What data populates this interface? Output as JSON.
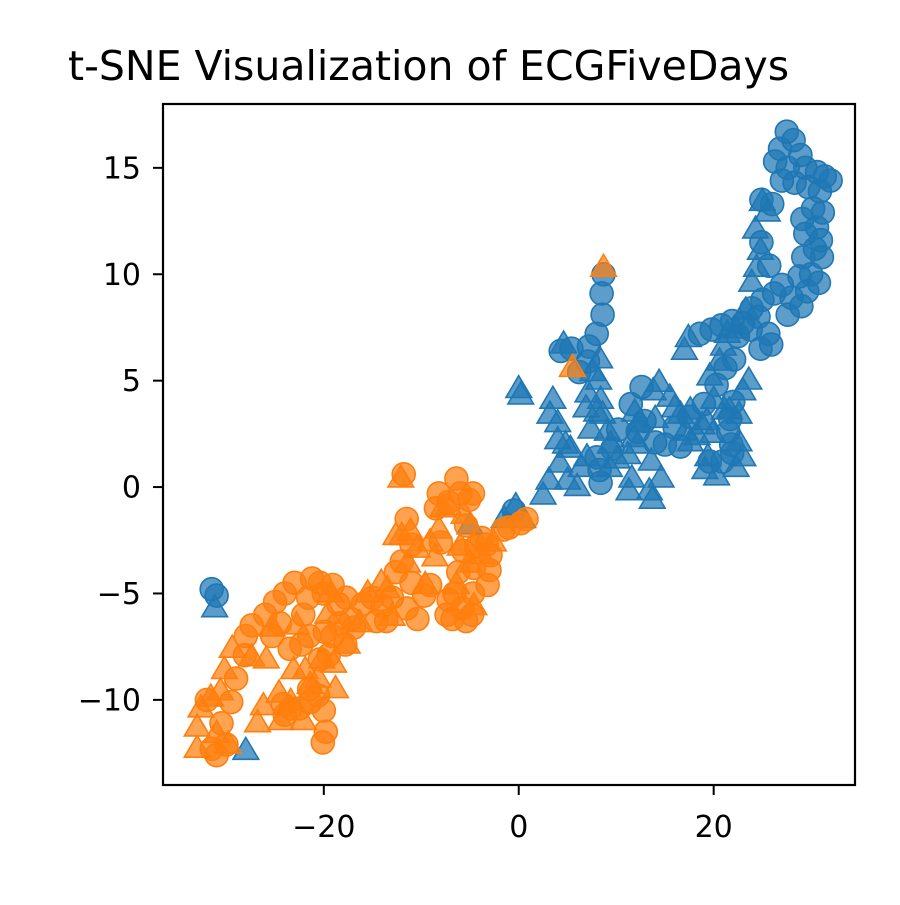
{
  "chart_data": {
    "type": "scatter",
    "title": "t-SNE Visualization of ECGFiveDays",
    "xlabel": "",
    "ylabel": "",
    "xlim": [
      -36.5,
      34.5
    ],
    "ylim": [
      -14.0,
      18.0
    ],
    "xticks": [
      -20,
      0,
      20
    ],
    "yticks": [
      -10,
      -5,
      0,
      5,
      10,
      15
    ],
    "xtick_labels": [
      "−20",
      "0",
      "20"
    ],
    "ytick_labels": [
      "−10",
      "−5",
      "0",
      "5",
      "10",
      "15"
    ],
    "grid": false,
    "legend": "none",
    "series": [
      {
        "color": "#1f77b4",
        "marker": "circle",
        "points": [
          [
            -31.5,
            -4.8
          ],
          [
            -31.0,
            -5.1
          ],
          [
            27.5,
            16.7
          ],
          [
            28.2,
            16.3
          ],
          [
            26.8,
            15.9
          ],
          [
            28.9,
            15.6
          ],
          [
            26.3,
            15.3
          ],
          [
            27.6,
            15.0
          ],
          [
            29.4,
            15.0
          ],
          [
            30.6,
            14.8
          ],
          [
            31.4,
            14.6
          ],
          [
            32.0,
            14.4
          ],
          [
            28.3,
            14.3
          ],
          [
            29.7,
            14.1
          ],
          [
            30.9,
            13.9
          ],
          [
            27.0,
            14.4
          ],
          [
            26.0,
            13.3
          ],
          [
            24.9,
            13.5
          ],
          [
            30.2,
            13.1
          ],
          [
            31.2,
            12.9
          ],
          [
            29.1,
            12.6
          ],
          [
            30.6,
            12.2
          ],
          [
            31.0,
            11.6
          ],
          [
            29.4,
            11.9
          ],
          [
            24.9,
            11.5
          ],
          [
            30.4,
            11.2
          ],
          [
            29.2,
            10.8
          ],
          [
            31.1,
            10.8
          ],
          [
            25.7,
            10.4
          ],
          [
            30.0,
            10.0
          ],
          [
            28.8,
            9.9
          ],
          [
            30.8,
            9.6
          ],
          [
            29.6,
            9.2
          ],
          [
            27.0,
            9.5
          ],
          [
            26.2,
            9.1
          ],
          [
            25.0,
            8.8
          ],
          [
            23.9,
            8.4
          ],
          [
            28.0,
            8.9
          ],
          [
            29.0,
            8.5
          ],
          [
            27.6,
            8.1
          ],
          [
            24.6,
            8.0
          ],
          [
            23.0,
            7.7
          ],
          [
            21.9,
            7.8
          ],
          [
            20.8,
            7.6
          ],
          [
            19.8,
            7.4
          ],
          [
            18.6,
            7.2
          ],
          [
            22.5,
            7.1
          ],
          [
            23.8,
            7.4
          ],
          [
            25.6,
            7.2
          ],
          [
            25.9,
            6.7
          ],
          [
            24.8,
            6.5
          ],
          [
            8.7,
            10.0
          ],
          [
            8.5,
            9.1
          ],
          [
            8.6,
            8.1
          ],
          [
            8.0,
            7.2
          ],
          [
            7.2,
            6.6
          ],
          [
            5.4,
            6.5
          ],
          [
            4.3,
            6.4
          ],
          [
            7.1,
            5.9
          ],
          [
            6.2,
            5.4
          ],
          [
            12.6,
            4.7
          ],
          [
            12.9,
            3.1
          ],
          [
            11.5,
            3.9
          ],
          [
            12.2,
            2.6
          ],
          [
            14.0,
            2.1
          ],
          [
            16.0,
            2.8
          ],
          [
            17.5,
            3.3
          ],
          [
            19.0,
            3.9
          ],
          [
            20.3,
            4.8
          ],
          [
            21.2,
            5.6
          ],
          [
            22.1,
            6.0
          ],
          [
            22.0,
            4.0
          ],
          [
            21.7,
            3.2
          ],
          [
            21.5,
            2.6
          ],
          [
            21.8,
            2.0
          ],
          [
            21.9,
            1.6
          ],
          [
            20.9,
            1.2
          ],
          [
            19.6,
            1.2
          ],
          [
            16.6,
            1.9
          ],
          [
            15.0,
            2.0
          ],
          [
            8.0,
            1.4
          ],
          [
            8.3,
            0.8
          ],
          [
            8.4,
            0.2
          ],
          [
            10.2,
            2.7
          ],
          [
            9.6,
            1.8
          ],
          [
            -0.5,
            -1.1
          ]
        ]
      },
      {
        "color": "#1f77b4",
        "marker": "triangle",
        "points": [
          [
            -31.2,
            -5.7
          ],
          [
            -28.0,
            -12.4
          ],
          [
            -5.0,
            -1.8
          ],
          [
            -1.5,
            -1.5
          ],
          [
            -0.3,
            -0.9
          ],
          [
            0.4,
            -1.5
          ],
          [
            0.0,
            4.6
          ],
          [
            0.2,
            4.3
          ],
          [
            3.2,
            3.4
          ],
          [
            3.5,
            4.1
          ],
          [
            4.8,
            2.0
          ],
          [
            4.0,
            3.0
          ],
          [
            4.6,
            6.7
          ],
          [
            4.0,
            2.2
          ],
          [
            3.1,
            0.3
          ],
          [
            2.5,
            -0.4
          ],
          [
            4.2,
            1.1
          ],
          [
            5.3,
            1.8
          ],
          [
            5.0,
            0.3
          ],
          [
            6.4,
            0.9
          ],
          [
            6.0,
            0.0
          ],
          [
            7.0,
            1.4
          ],
          [
            7.4,
            2.7
          ],
          [
            6.9,
            3.7
          ],
          [
            7.1,
            4.4
          ],
          [
            7.6,
            5.4
          ],
          [
            8.3,
            6.0
          ],
          [
            8.2,
            5.0
          ],
          [
            8.4,
            4.1
          ],
          [
            8.0,
            3.5
          ],
          [
            8.6,
            3.4
          ],
          [
            9.1,
            2.6
          ],
          [
            9.4,
            2.0
          ],
          [
            10.1,
            1.3
          ],
          [
            9.3,
            0.9
          ],
          [
            11.2,
            1.5
          ],
          [
            11.6,
            0.4
          ],
          [
            11.3,
            -0.2
          ],
          [
            11.9,
            3.5
          ],
          [
            11.8,
            2.3
          ],
          [
            12.2,
            2.0
          ],
          [
            12.4,
            3.0
          ],
          [
            13.6,
            1.2
          ],
          [
            14.6,
            0.4
          ],
          [
            13.7,
            -0.6
          ],
          [
            13.4,
            -0.2
          ],
          [
            14.0,
            3.2
          ],
          [
            13.8,
            4.5
          ],
          [
            14.4,
            4.9
          ],
          [
            15.5,
            4.2
          ],
          [
            16.0,
            3.7
          ],
          [
            16.6,
            3.4
          ],
          [
            17.6,
            3.6
          ],
          [
            17.1,
            2.6
          ],
          [
            17.6,
            2.1
          ],
          [
            18.3,
            2.4
          ],
          [
            18.8,
            2.9
          ],
          [
            19.3,
            3.1
          ],
          [
            19.9,
            2.5
          ],
          [
            19.4,
            1.4
          ],
          [
            19.1,
            0.8
          ],
          [
            19.6,
            5.2
          ],
          [
            20.6,
            5.9
          ],
          [
            20.0,
            4.1
          ],
          [
            21.1,
            3.6
          ],
          [
            21.6,
            3.6
          ],
          [
            23.0,
            4.5
          ],
          [
            23.6,
            5.0
          ],
          [
            22.6,
            3.4
          ],
          [
            22.6,
            2.1
          ],
          [
            23.0,
            1.4
          ],
          [
            22.3,
            0.9
          ],
          [
            20.3,
            0.5
          ],
          [
            17.0,
            6.4
          ],
          [
            17.4,
            7.0
          ],
          [
            21.0,
            6.6
          ],
          [
            21.4,
            7.2
          ],
          [
            22.3,
            7.4
          ],
          [
            23.3,
            8.3
          ],
          [
            23.9,
            9.6
          ],
          [
            24.4,
            10.3
          ],
          [
            24.8,
            11.1
          ],
          [
            24.3,
            12.1
          ],
          [
            25.5,
            12.9
          ],
          [
            25.0,
            13.4
          ]
        ]
      },
      {
        "color": "#ff7f0e",
        "marker": "circle",
        "points": [
          [
            -32.0,
            -10.0
          ],
          [
            -31.5,
            -12.3
          ],
          [
            -30.0,
            -12.1
          ],
          [
            -30.5,
            -11.1
          ],
          [
            -29.5,
            -10.1
          ],
          [
            -29.0,
            -9.0
          ],
          [
            -28.1,
            -7.9
          ],
          [
            -28.0,
            -7.0
          ],
          [
            -27.4,
            -6.5
          ],
          [
            -26.0,
            -6.0
          ],
          [
            -25.0,
            -5.4
          ],
          [
            -24.0,
            -5.0
          ],
          [
            -23.0,
            -4.5
          ],
          [
            -24.5,
            -6.4
          ],
          [
            -25.3,
            -7.0
          ],
          [
            -23.5,
            -7.6
          ],
          [
            -22.1,
            -6.0
          ],
          [
            -21.6,
            -5.2
          ],
          [
            -21.2,
            -4.3
          ],
          [
            -20.4,
            -4.5
          ],
          [
            -20.0,
            -5.0
          ],
          [
            -19.1,
            -4.6
          ],
          [
            -18.5,
            -5.5
          ],
          [
            -17.7,
            -5.2
          ],
          [
            -17.2,
            -6.2
          ],
          [
            -18.4,
            -6.4
          ],
          [
            -19.1,
            -7.0
          ],
          [
            -19.9,
            -6.8
          ],
          [
            -19.5,
            -7.9
          ],
          [
            -20.4,
            -8.1
          ],
          [
            -21.5,
            -7.0
          ],
          [
            -22.3,
            -7.4
          ],
          [
            -24.2,
            -10.2
          ],
          [
            -24.0,
            -10.7
          ],
          [
            -23.4,
            -10.4
          ],
          [
            -22.5,
            -10.4
          ],
          [
            -21.5,
            -9.5
          ],
          [
            -20.6,
            -9.8
          ],
          [
            -20.0,
            -10.5
          ],
          [
            -19.8,
            -11.5
          ],
          [
            -20.1,
            -12.0
          ],
          [
            -21.4,
            -10.1
          ],
          [
            -17.8,
            -7.4
          ],
          [
            -16.9,
            -6.6
          ],
          [
            -16.0,
            -5.5
          ],
          [
            -15.0,
            -5.2
          ],
          [
            -14.0,
            -5.6
          ],
          [
            -13.6,
            -6.3
          ],
          [
            -14.6,
            -6.3
          ],
          [
            -13.0,
            -5.2
          ],
          [
            -12.6,
            -4.0
          ],
          [
            -12.0,
            -3.5
          ],
          [
            -11.5,
            -1.5
          ],
          [
            -11.0,
            -2.7
          ],
          [
            -11.0,
            -4.5
          ],
          [
            -11.5,
            -5.7
          ],
          [
            -10.4,
            -6.2
          ],
          [
            -9.7,
            -5.1
          ],
          [
            -9.1,
            -4.6
          ],
          [
            -8.0,
            -2.6
          ],
          [
            -8.5,
            -1.0
          ],
          [
            -8.2,
            -0.3
          ],
          [
            -7.2,
            -0.7
          ],
          [
            -6.4,
            0.4
          ],
          [
            -6.0,
            -0.3
          ],
          [
            -5.1,
            -0.6
          ],
          [
            -4.7,
            -0.3
          ],
          [
            -5.4,
            -1.8
          ],
          [
            -5.7,
            -3.0
          ],
          [
            -6.2,
            -4.0
          ],
          [
            -6.6,
            -5.0
          ],
          [
            -7.2,
            -5.3
          ],
          [
            -7.4,
            -6.0
          ],
          [
            -6.8,
            -6.2
          ],
          [
            -5.8,
            -5.7
          ],
          [
            -5.4,
            -6.3
          ],
          [
            -4.8,
            -6.0
          ],
          [
            -4.7,
            -5.0
          ],
          [
            -4.6,
            -3.8
          ],
          [
            -4.4,
            -2.8
          ],
          [
            -3.8,
            -2.4
          ],
          [
            -3.3,
            -2.7
          ],
          [
            -3.0,
            -3.9
          ],
          [
            -3.2,
            -4.6
          ],
          [
            -2.9,
            -3.2
          ],
          [
            -1.6,
            -2.0
          ],
          [
            -1.0,
            -1.9
          ],
          [
            0.2,
            -1.7
          ],
          [
            0.8,
            -1.5
          ],
          [
            -11.8,
            0.6
          ],
          [
            -31.0,
            -12.6
          ]
        ]
      },
      {
        "color": "#ff7f0e",
        "marker": "triangle",
        "points": [
          [
            -33.0,
            -12.3
          ],
          [
            -33.0,
            -11.3
          ],
          [
            -32.6,
            -10.4
          ],
          [
            -31.6,
            -9.9
          ],
          [
            -31.0,
            -11.6
          ],
          [
            -30.6,
            -9.6
          ],
          [
            -30.2,
            -8.6
          ],
          [
            -29.8,
            -12.1
          ],
          [
            -29.4,
            -7.6
          ],
          [
            -27.4,
            -8.0
          ],
          [
            -26.8,
            -11.1
          ],
          [
            -26.2,
            -10.3
          ],
          [
            -25.9,
            -8.1
          ],
          [
            -25.3,
            -6.6
          ],
          [
            -24.6,
            -9.7
          ],
          [
            -24.4,
            -11.0
          ],
          [
            -23.4,
            -10.1
          ],
          [
            -23.1,
            -8.6
          ],
          [
            -22.8,
            -6.5
          ],
          [
            -22.1,
            -11.0
          ],
          [
            -21.9,
            -8.6
          ],
          [
            -21.4,
            -9.3
          ],
          [
            -20.6,
            -9.0
          ],
          [
            -20.2,
            -8.1
          ],
          [
            -19.6,
            -6.0
          ],
          [
            -19.3,
            -5.0
          ],
          [
            -19.0,
            -8.3
          ],
          [
            -18.8,
            -9.5
          ],
          [
            -17.6,
            -7.4
          ],
          [
            -16.3,
            -6.4
          ],
          [
            -15.5,
            -5.0
          ],
          [
            -14.1,
            -4.5
          ],
          [
            -13.5,
            -4.8
          ],
          [
            -13.0,
            -6.1
          ],
          [
            -12.6,
            -2.3
          ],
          [
            -12.0,
            -2.3
          ],
          [
            -11.4,
            -3.6
          ],
          [
            -11.1,
            -2.1
          ],
          [
            -10.4,
            -2.9
          ],
          [
            -9.6,
            -4.6
          ],
          [
            -9.1,
            -2.6
          ],
          [
            -8.6,
            -3.3
          ],
          [
            -8.2,
            -2.0
          ],
          [
            -7.8,
            -1.0
          ],
          [
            -7.2,
            -0.9
          ],
          [
            -6.4,
            -4.6
          ],
          [
            -6.0,
            -2.8
          ],
          [
            -5.6,
            -1.3
          ],
          [
            -5.1,
            -3.6
          ],
          [
            -4.6,
            -5.6
          ],
          [
            -3.8,
            -3.2
          ],
          [
            -2.6,
            -2.6
          ],
          [
            -12.1,
            0.4
          ],
          [
            5.5,
            5.6
          ],
          [
            8.7,
            10.3
          ]
        ]
      }
    ]
  }
}
